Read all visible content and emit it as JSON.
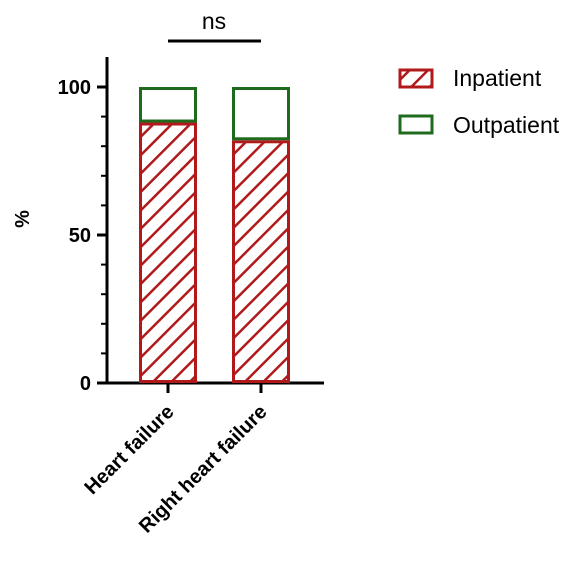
{
  "chart_data": {
    "type": "bar",
    "stacked": true,
    "categories": [
      "Heart failure",
      "Right heart failure"
    ],
    "series": [
      {
        "name": "Inpatient",
        "values": [
          88,
          82
        ],
        "color": "#B01A1A",
        "pattern": "diagonal-hatch"
      },
      {
        "name": "Outpatient",
        "values": [
          12,
          18
        ],
        "color": "#1E6B1E",
        "pattern": "none"
      }
    ],
    "ylabel": "%",
    "xlabel": "",
    "ylim": [
      0,
      110
    ],
    "yticks": [
      0,
      50,
      100
    ],
    "grid": false,
    "legend": "right",
    "annotations": [
      {
        "text": "ns",
        "between": [
          "Heart failure",
          "Right heart failure"
        ]
      }
    ]
  }
}
